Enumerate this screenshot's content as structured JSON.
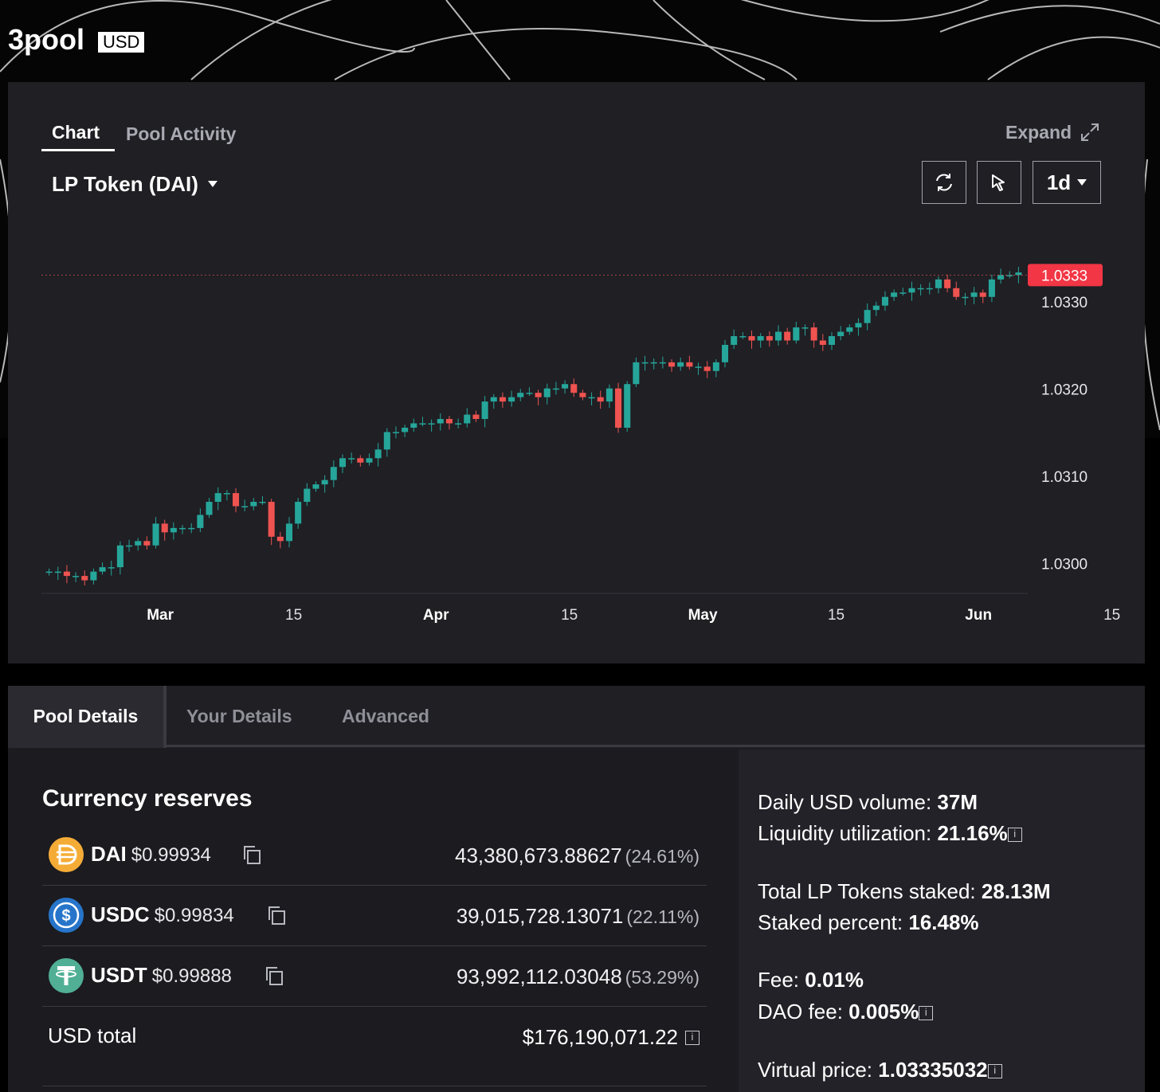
{
  "pool": {
    "name": "3pool",
    "currency_badge": "USD"
  },
  "chart_panel": {
    "tabs": [
      "Chart",
      "Pool Activity"
    ],
    "expand_label": "Expand",
    "token_selector": "LP Token (DAI)",
    "interval": "1d",
    "last_price_label": "1.0333"
  },
  "chart_data": {
    "type": "candlestick",
    "title": "LP Token (DAI)",
    "x_tick_labels": [
      "Mar",
      "15",
      "Apr",
      "15",
      "May",
      "15",
      "Jun",
      "15"
    ],
    "y_tick_labels": [
      "1.0330",
      "1.0320",
      "1.0310",
      "1.0300"
    ],
    "ylim": [
      1.02965,
      1.03355
    ],
    "last_price": 1.0333,
    "current_price_line": true,
    "up_color": "#26a69a",
    "down_color": "#ef5350",
    "series_close_daily": [
      1.0299,
      1.0299,
      1.02985,
      1.02985,
      1.0298,
      1.0299,
      1.02995,
      1.02995,
      1.0302,
      1.0302,
      1.03025,
      1.0302,
      1.03045,
      1.03035,
      1.0304,
      1.0304,
      1.0304,
      1.03055,
      1.0307,
      1.0308,
      1.0308,
      1.03065,
      1.03065,
      1.0307,
      1.0307,
      1.0303,
      1.03025,
      1.03045,
      1.0307,
      1.03085,
      1.0309,
      1.03095,
      1.0311,
      1.0312,
      1.0312,
      1.03115,
      1.0312,
      1.0313,
      1.0315,
      1.0315,
      1.03155,
      1.0316,
      1.0316,
      1.0316,
      1.03165,
      1.0316,
      1.0316,
      1.0317,
      1.03165,
      1.03185,
      1.0319,
      1.03185,
      1.0319,
      1.03195,
      1.03195,
      1.0319,
      1.032,
      1.032,
      1.03205,
      1.03195,
      1.0319,
      1.0319,
      1.03185,
      1.032,
      1.03155,
      1.03205,
      1.0323,
      1.0323,
      1.0323,
      1.0323,
      1.03225,
      1.0323,
      1.03225,
      1.03225,
      1.0322,
      1.0323,
      1.0325,
      1.0326,
      1.0326,
      1.03255,
      1.0326,
      1.03255,
      1.03265,
      1.03255,
      1.0327,
      1.0327,
      1.03255,
      1.0325,
      1.0326,
      1.03265,
      1.0327,
      1.03275,
      1.0329,
      1.03295,
      1.03305,
      1.0331,
      1.0331,
      1.03315,
      1.03315,
      1.03315,
      1.03325,
      1.03315,
      1.03305,
      1.03305,
      1.0331,
      1.03305,
      1.03325,
      1.0333,
      1.0333,
      1.03333
    ]
  },
  "details_tabs": [
    "Pool Details",
    "Your Details",
    "Advanced"
  ],
  "currency_reserves": {
    "title": "Currency reserves",
    "coins": [
      {
        "symbol": "DAI",
        "price": "$0.99934",
        "amount": "43,380,673.88627",
        "percent": "(24.61%)",
        "icon": "dai-icon",
        "color": "#f5ac37"
      },
      {
        "symbol": "USDC",
        "price": "$0.99834",
        "amount": "39,015,728.13071",
        "percent": "(22.11%)",
        "icon": "usdc-icon",
        "color": "#2775ca"
      },
      {
        "symbol": "USDT",
        "price": "$0.99888",
        "amount": "93,992,112.03048",
        "percent": "(53.29%)",
        "icon": "usdt-icon",
        "color": "#50af95"
      }
    ],
    "total_label": "USD total",
    "total_value": "$176,190,071.22"
  },
  "stats": [
    {
      "label": "Daily USD volume:",
      "value": "37M",
      "info": false
    },
    {
      "label": "Liquidity utilization:",
      "value": "21.16%",
      "info": true
    },
    {
      "label": "Total LP Tokens staked:",
      "value": "28.13M",
      "info": false
    },
    {
      "label": "Staked percent:",
      "value": "16.48%",
      "info": false
    },
    {
      "label": "Fee:",
      "value": "0.01%",
      "info": false
    },
    {
      "label": "DAO fee:",
      "value": "0.005%",
      "info": true
    },
    {
      "label": "Virtual price:",
      "value": "1.03335032",
      "info": true
    }
  ]
}
